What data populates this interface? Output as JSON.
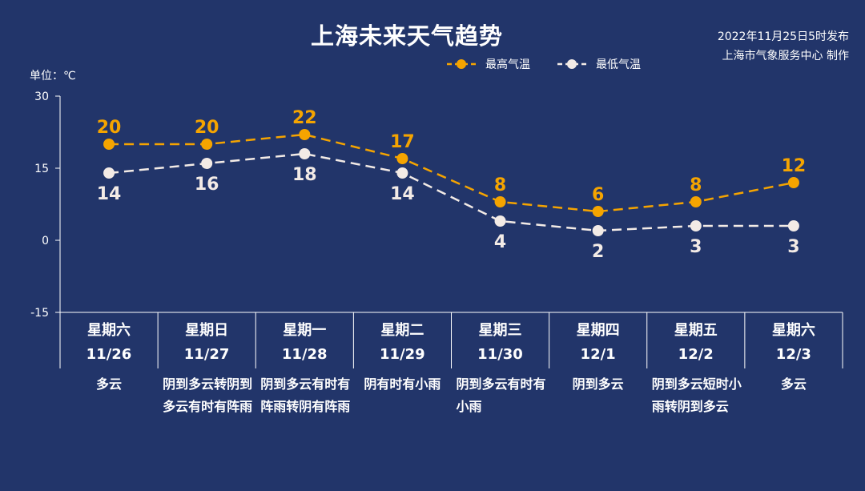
{
  "header": {
    "title": "上海未来天气趋势",
    "issue_time": "2022年11月25日5时发布",
    "issuer": "上海市气象服务中心 制作",
    "unit": "单位：℃"
  },
  "colors": {
    "background": "#22356a",
    "high": "#f5a400",
    "low": "#f3ebe6",
    "axis": "#ffffff"
  },
  "days": [
    {
      "weekday": "星期六",
      "date": "11/26",
      "weather": "多云"
    },
    {
      "weekday": "星期日",
      "date": "11/27",
      "weather": "阴到多云转阴到多云有时有阵雨"
    },
    {
      "weekday": "星期一",
      "date": "11/28",
      "weather": "阴到多云有时有阵雨转阴有阵雨"
    },
    {
      "weekday": "星期二",
      "date": "11/29",
      "weather": "阴有时有小雨"
    },
    {
      "weekday": "星期三",
      "date": "11/30",
      "weather": "阴到多云有时有小雨"
    },
    {
      "weekday": "星期四",
      "date": "12/1",
      "weather": "阴到多云"
    },
    {
      "weekday": "星期五",
      "date": "12/2",
      "weather": "阴到多云短时小雨转阴到多云"
    },
    {
      "weekday": "星期六",
      "date": "12/3",
      "weather": "多云"
    }
  ],
  "chart_data": {
    "type": "line",
    "title": "上海未来天气趋势",
    "ylabel": "单位：℃",
    "categories": [
      "11/26",
      "11/27",
      "11/28",
      "11/29",
      "11/30",
      "12/1",
      "12/2",
      "12/3"
    ],
    "ylim": [
      -15,
      30
    ],
    "yticks": [
      30,
      15,
      0,
      -15
    ],
    "legend_position": "top-right",
    "series": [
      {
        "name": "最高气温",
        "values": [
          20,
          20,
          22,
          17,
          8,
          6,
          8,
          12
        ],
        "color": "#f5a400"
      },
      {
        "name": "最低气温",
        "values": [
          14,
          16,
          18,
          14,
          4,
          2,
          3,
          3
        ],
        "color": "#f3ebe6"
      }
    ]
  }
}
